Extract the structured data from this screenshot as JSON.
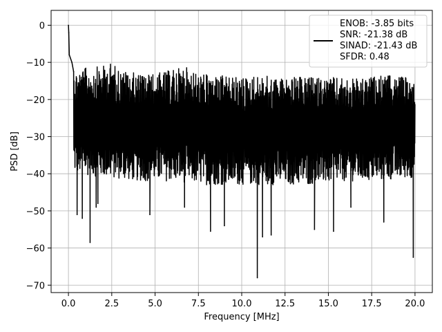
{
  "chart_data": {
    "type": "line",
    "title": "",
    "xlabel": "Frequency [MHz]",
    "ylabel": "PSD [dB]",
    "xlim": [
      -1.0,
      21.0
    ],
    "ylim": [
      -72.0,
      4.0
    ],
    "x_ticks": [
      0.0,
      2.5,
      5.0,
      7.5,
      10.0,
      12.5,
      15.0,
      17.5,
      20.0
    ],
    "x_tick_labels": [
      "0.0",
      "2.5",
      "5.0",
      "7.5",
      "10.0",
      "12.5",
      "15.0",
      "17.5",
      "20.0"
    ],
    "y_ticks": [
      0,
      -10,
      -20,
      -30,
      -40,
      -50,
      -60,
      -70
    ],
    "y_tick_labels": [
      "0",
      "−10",
      "−20",
      "−30",
      "−40",
      "−50",
      "−60",
      "−70"
    ],
    "grid": true,
    "line_color": "#000000",
    "legend_position": "top-right",
    "legend_lines": [
      "ENOB: -3.85 bits",
      "SNR: -21.38 dB",
      "SINAD: -21.43 dB",
      "SFDR: 0.48"
    ],
    "series": [
      {
        "x_start": 0.0,
        "x_end": 20.0,
        "peak_points": [
          [
            0.0,
            0.0
          ],
          [
            0.02,
            -2.0
          ],
          [
            0.05,
            -8.0
          ],
          [
            0.2,
            -10.0
          ],
          [
            0.3,
            -12.5
          ]
        ],
        "upper_envelope": [
          [
            0.4,
            -12.0
          ],
          [
            1.0,
            -11.5
          ],
          [
            2.0,
            -11.0
          ],
          [
            2.5,
            -10.0
          ],
          [
            3.0,
            -12.0
          ],
          [
            4.0,
            -13.0
          ],
          [
            5.0,
            -13.0
          ],
          [
            6.0,
            -12.0
          ],
          [
            6.7,
            -11.0
          ],
          [
            7.5,
            -13.0
          ],
          [
            8.5,
            -13.5
          ],
          [
            10.0,
            -14.0
          ],
          [
            11.0,
            -13.5
          ],
          [
            12.0,
            -14.0
          ],
          [
            13.0,
            -14.0
          ],
          [
            15.0,
            -14.0
          ],
          [
            17.0,
            -14.5
          ],
          [
            18.0,
            -13.5
          ],
          [
            20.0,
            -14.0
          ]
        ],
        "lower_envelope": [
          [
            0.4,
            -40.0
          ],
          [
            2.0,
            -41.0
          ],
          [
            4.0,
            -42.0
          ],
          [
            6.0,
            -42.0
          ],
          [
            8.0,
            -43.0
          ],
          [
            10.0,
            -43.0
          ],
          [
            12.0,
            -43.0
          ],
          [
            14.0,
            -43.0
          ],
          [
            16.0,
            -42.0
          ],
          [
            18.0,
            -42.0
          ],
          [
            20.0,
            -41.0
          ]
        ],
        "notable_dips": [
          [
            0.5,
            -51.0
          ],
          [
            0.8,
            -52.0
          ],
          [
            1.25,
            -58.5
          ],
          [
            1.6,
            -49.0
          ],
          [
            1.7,
            -48.0
          ],
          [
            4.7,
            -51.0
          ],
          [
            6.7,
            -49.0
          ],
          [
            8.2,
            -55.5
          ],
          [
            9.0,
            -54.0
          ],
          [
            10.9,
            -68.0
          ],
          [
            11.2,
            -57.0
          ],
          [
            11.7,
            -56.5
          ],
          [
            14.2,
            -55.0
          ],
          [
            15.3,
            -55.5
          ],
          [
            16.3,
            -49.0
          ],
          [
            18.2,
            -53.0
          ],
          [
            19.9,
            -62.5
          ]
        ]
      }
    ]
  }
}
